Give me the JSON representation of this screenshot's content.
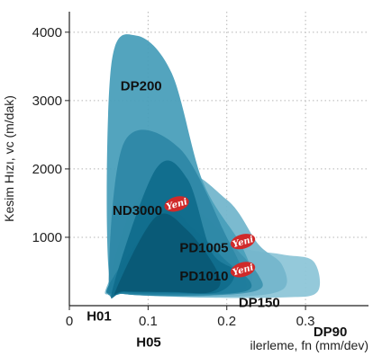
{
  "chart_data": {
    "type": "area",
    "title": "",
    "xlabel": "ilerleme, fn (mm/dev)",
    "ylabel": "Kesim Hızı, vc (m/dak)",
    "xlim": [
      0,
      0.38
    ],
    "ylim": [
      0,
      4300
    ],
    "x_ticks": [
      "0",
      "0.1",
      "0.2",
      "0.3"
    ],
    "y_ticks": [
      "1000",
      "2000",
      "3000",
      "4000"
    ],
    "grid": "dotted",
    "badge_text": "Yeni",
    "colors": {
      "DP90": "#8ec6d8",
      "DP150": "#74b6cc",
      "DP200": "#4a9fba",
      "PD1005": "#3e94b0",
      "ND3000": "#2e88a6",
      "PD1010": "#1f7c9c",
      "H01": "#106d8c",
      "H05": "#0a5a76",
      "badge": "#d02a2a"
    },
    "series": [
      {
        "name": "DP90",
        "x": [
          0.05,
          0.11,
          0.16,
          0.21,
          0.27,
          0.31,
          0.315,
          0.27,
          0.16,
          0.07
        ],
        "y": [
          300,
          1300,
          1500,
          900,
          750,
          650,
          200,
          120,
          120,
          180
        ]
      },
      {
        "name": "DP150",
        "x": [
          0.05,
          0.13,
          0.2,
          0.24,
          0.27,
          0.27,
          0.2,
          0.07
        ],
        "y": [
          350,
          1900,
          1550,
          900,
          600,
          230,
          130,
          170
        ]
      },
      {
        "name": "DP200",
        "x": [
          0.05,
          0.053,
          0.085,
          0.13,
          0.17,
          0.22,
          0.23,
          0.18,
          0.08
        ],
        "y": [
          500,
          3500,
          3950,
          3400,
          1800,
          850,
          300,
          150,
          180
        ]
      },
      {
        "name": "PD1005",
        "x": [
          0.05,
          0.09,
          0.16,
          0.21,
          0.24,
          0.24,
          0.18,
          0.07
        ],
        "y": [
          300,
          1600,
          1400,
          850,
          450,
          230,
          150,
          170
        ]
      },
      {
        "name": "ND3000",
        "x": [
          0.05,
          0.07,
          0.14,
          0.2,
          0.22,
          0.22,
          0.16,
          0.07
        ],
        "y": [
          350,
          2400,
          2300,
          1000,
          500,
          220,
          150,
          170
        ]
      },
      {
        "name": "PD1010",
        "x": [
          0.05,
          0.12,
          0.16,
          0.2,
          0.23,
          0.22,
          0.16,
          0.07
        ],
        "y": [
          300,
          1350,
          1100,
          650,
          350,
          200,
          170,
          180
        ]
      },
      {
        "name": "H01",
        "x": [
          0.055,
          0.11,
          0.15,
          0.18,
          0.21,
          0.19,
          0.13,
          0.07
        ],
        "y": [
          250,
          2000,
          1850,
          800,
          500,
          200,
          190,
          200
        ]
      },
      {
        "name": "H05",
        "x": [
          0.06,
          0.11,
          0.15,
          0.19,
          0.18,
          0.13,
          0.07
        ],
        "y": [
          250,
          1300,
          1100,
          450,
          200,
          200,
          210
        ]
      }
    ],
    "labels": [
      {
        "text": "DP200",
        "x": 0.065,
        "y": 3150,
        "badge": false
      },
      {
        "text": "ND3000",
        "x": 0.055,
        "y": 1330,
        "badge": true
      },
      {
        "text": "PD1005",
        "x": 0.14,
        "y": 780,
        "badge": true
      },
      {
        "text": "PD1010",
        "x": 0.14,
        "y": 370,
        "badge": true
      },
      {
        "text": "DP150",
        "x": 0.215,
        "y": -20,
        "badge": false
      },
      {
        "text": "DP90",
        "x": 0.31,
        "y": -450,
        "badge": false
      },
      {
        "text": "H01",
        "x": 0.022,
        "y": -220,
        "badge": false
      },
      {
        "text": "H05",
        "x": 0.085,
        "y": -600,
        "badge": false
      }
    ]
  }
}
